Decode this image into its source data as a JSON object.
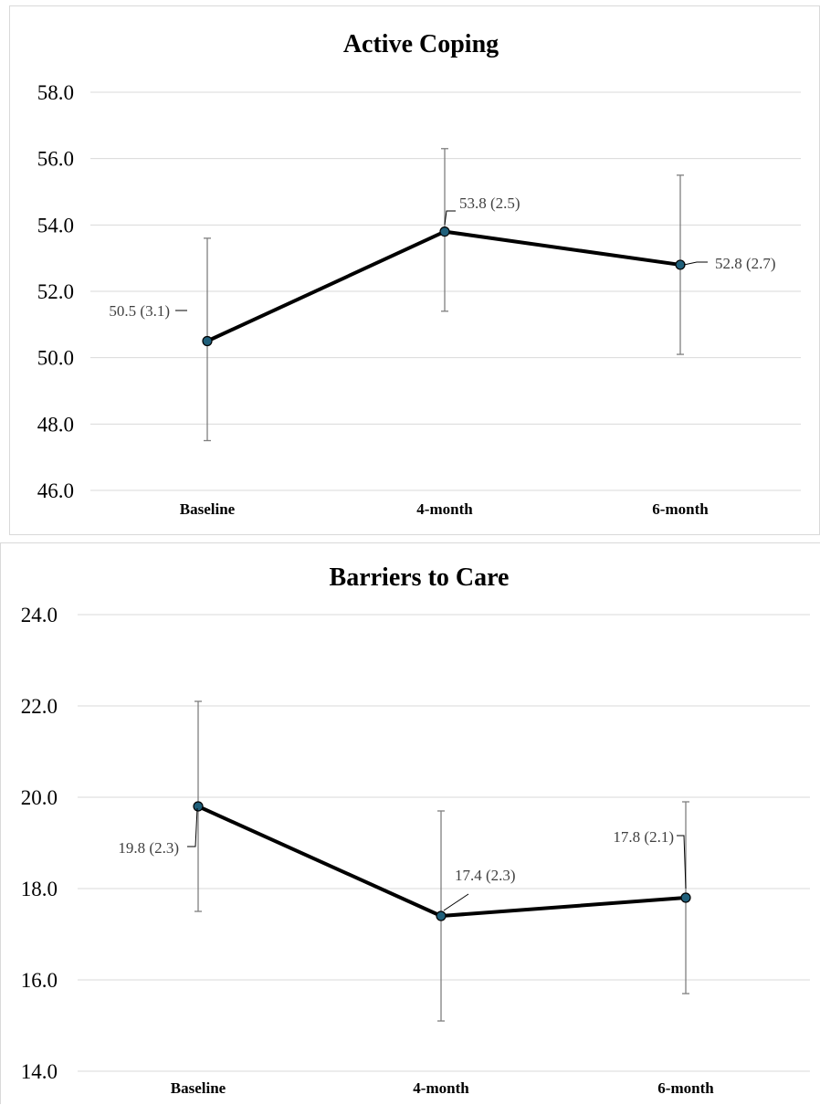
{
  "chart_data": [
    {
      "type": "line",
      "title": "Active Coping",
      "xlabel": "",
      "ylabel": "",
      "categories": [
        "Baseline",
        "4-month",
        "6-month"
      ],
      "values": [
        50.5,
        53.8,
        52.8
      ],
      "error_low": [
        47.5,
        51.4,
        50.1
      ],
      "error_high": [
        53.6,
        56.3,
        55.5
      ],
      "data_labels": [
        "50.5 (3.1)",
        "53.8 (2.5)",
        "52.8 (2.7)"
      ],
      "ylim": [
        46.0,
        58.0
      ],
      "yticks": [
        "46.0",
        "48.0",
        "50.0",
        "52.0",
        "54.0",
        "56.0",
        "58.0"
      ],
      "grid": true,
      "legend": "none",
      "line_color": "#000000",
      "marker_color": "#1f5f7a"
    },
    {
      "type": "line",
      "title": "Barriers to Care",
      "xlabel": "",
      "ylabel": "",
      "categories": [
        "Baseline",
        "4-month",
        "6-month"
      ],
      "values": [
        19.8,
        17.4,
        17.8
      ],
      "error_low": [
        17.5,
        15.1,
        15.7
      ],
      "error_high": [
        22.1,
        19.7,
        19.9
      ],
      "data_labels": [
        "19.8 (2.3)",
        "17.4 (2.3)",
        "17.8 (2.1)"
      ],
      "ylim": [
        14.0,
        24.0
      ],
      "yticks": [
        "14.0",
        "16.0",
        "18.0",
        "20.0",
        "22.0",
        "24.0"
      ],
      "grid": true,
      "legend": "none",
      "line_color": "#000000",
      "marker_color": "#1f5f7a"
    }
  ]
}
